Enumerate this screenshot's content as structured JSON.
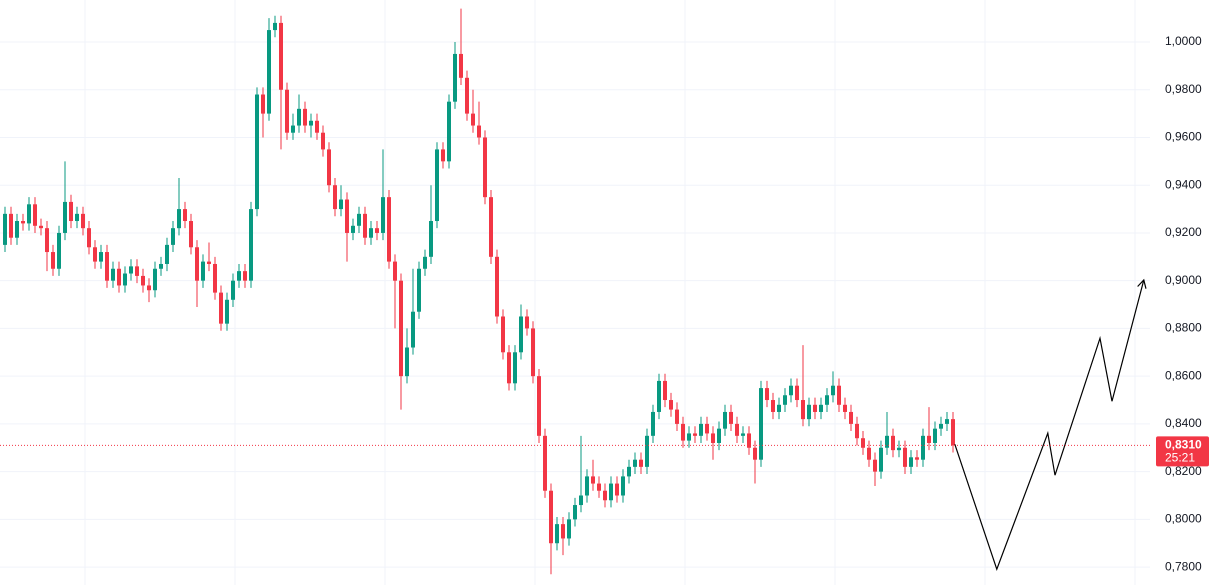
{
  "chart_data": {
    "type": "candlestick",
    "up_color": "#089981",
    "down_color": "#f23645",
    "grid": true,
    "ylim": [
      0.7725,
      1.0176
    ],
    "yticks": [
      {
        "value": 0.78,
        "label": "0,7800"
      },
      {
        "value": 0.8,
        "label": "0,8000"
      },
      {
        "value": 0.82,
        "label": "0,8200"
      },
      {
        "value": 0.84,
        "label": "0,8400"
      },
      {
        "value": 0.86,
        "label": "0,8600"
      },
      {
        "value": 0.88,
        "label": "0,8800"
      },
      {
        "value": 0.9,
        "label": "0,9000"
      },
      {
        "value": 0.92,
        "label": "0,9200"
      },
      {
        "value": 0.94,
        "label": "0,9400"
      },
      {
        "value": 0.96,
        "label": "0,9600"
      },
      {
        "value": 0.98,
        "label": "0,9800"
      },
      {
        "value": 1.0,
        "label": "1,0000"
      }
    ],
    "last_price": {
      "value": 0.831,
      "label": "0,8310"
    },
    "countdown": "25:21",
    "candles": [
      [
        0.915,
        0.931,
        0.912,
        0.928
      ],
      [
        0.928,
        0.931,
        0.915,
        0.918
      ],
      [
        0.918,
        0.928,
        0.915,
        0.925
      ],
      [
        0.925,
        0.928,
        0.921,
        0.924
      ],
      [
        0.924,
        0.935,
        0.921,
        0.932
      ],
      [
        0.932,
        0.935,
        0.92,
        0.923
      ],
      [
        0.923,
        0.926,
        0.919,
        0.922
      ],
      [
        0.922,
        0.925,
        0.904,
        0.912
      ],
      [
        0.912,
        0.915,
        0.902,
        0.905
      ],
      [
        0.905,
        0.923,
        0.902,
        0.92
      ],
      [
        0.92,
        0.95,
        0.917,
        0.933
      ],
      [
        0.933,
        0.936,
        0.922,
        0.925
      ],
      [
        0.925,
        0.931,
        0.922,
        0.928
      ],
      [
        0.928,
        0.931,
        0.919,
        0.922
      ],
      [
        0.922,
        0.925,
        0.911,
        0.914
      ],
      [
        0.914,
        0.917,
        0.905,
        0.908
      ],
      [
        0.908,
        0.915,
        0.905,
        0.912
      ],
      [
        0.912,
        0.915,
        0.897,
        0.9
      ],
      [
        0.9,
        0.908,
        0.897,
        0.905
      ],
      [
        0.905,
        0.908,
        0.895,
        0.898
      ],
      [
        0.898,
        0.906,
        0.895,
        0.903
      ],
      [
        0.903,
        0.909,
        0.9,
        0.906
      ],
      [
        0.906,
        0.909,
        0.899,
        0.902
      ],
      [
        0.902,
        0.905,
        0.895,
        0.898
      ],
      [
        0.898,
        0.901,
        0.891,
        0.896
      ],
      [
        0.896,
        0.908,
        0.893,
        0.905
      ],
      [
        0.905,
        0.91,
        0.902,
        0.907
      ],
      [
        0.907,
        0.918,
        0.904,
        0.915
      ],
      [
        0.915,
        0.925,
        0.912,
        0.922
      ],
      [
        0.922,
        0.943,
        0.919,
        0.93
      ],
      [
        0.93,
        0.933,
        0.922,
        0.925
      ],
      [
        0.925,
        0.928,
        0.911,
        0.914
      ],
      [
        0.914,
        0.917,
        0.889,
        0.9
      ],
      [
        0.9,
        0.911,
        0.897,
        0.908
      ],
      [
        0.908,
        0.916,
        0.904,
        0.907
      ],
      [
        0.907,
        0.91,
        0.892,
        0.895
      ],
      [
        0.895,
        0.898,
        0.879,
        0.882
      ],
      [
        0.882,
        0.895,
        0.879,
        0.892
      ],
      [
        0.892,
        0.903,
        0.889,
        0.9
      ],
      [
        0.9,
        0.907,
        0.897,
        0.904
      ],
      [
        0.904,
        0.907,
        0.897,
        0.9
      ],
      [
        0.9,
        0.933,
        0.897,
        0.93
      ],
      [
        0.93,
        0.981,
        0.927,
        0.978
      ],
      [
        0.978,
        0.981,
        0.96,
        0.97
      ],
      [
        0.97,
        1.01,
        0.967,
        1.005
      ],
      [
        1.005,
        1.011,
        1.002,
        1.008
      ],
      [
        1.008,
        1.011,
        0.955,
        0.98
      ],
      [
        0.98,
        0.983,
        0.959,
        0.962
      ],
      [
        0.962,
        0.97,
        0.959,
        0.965
      ],
      [
        0.965,
        0.978,
        0.962,
        0.972
      ],
      [
        0.972,
        0.975,
        0.962,
        0.965
      ],
      [
        0.965,
        0.97,
        0.96,
        0.967
      ],
      [
        0.967,
        0.97,
        0.959,
        0.962
      ],
      [
        0.962,
        0.965,
        0.952,
        0.955
      ],
      [
        0.955,
        0.958,
        0.937,
        0.94
      ],
      [
        0.94,
        0.943,
        0.927,
        0.93
      ],
      [
        0.93,
        0.94,
        0.927,
        0.934
      ],
      [
        0.934,
        0.937,
        0.908,
        0.92
      ],
      [
        0.92,
        0.926,
        0.917,
        0.923
      ],
      [
        0.923,
        0.931,
        0.92,
        0.928
      ],
      [
        0.928,
        0.931,
        0.915,
        0.918
      ],
      [
        0.918,
        0.925,
        0.915,
        0.922
      ],
      [
        0.922,
        0.925,
        0.917,
        0.92
      ],
      [
        0.92,
        0.955,
        0.917,
        0.935
      ],
      [
        0.935,
        0.938,
        0.905,
        0.908
      ],
      [
        0.908,
        0.911,
        0.88,
        0.9
      ],
      [
        0.9,
        0.903,
        0.846,
        0.86
      ],
      [
        0.86,
        0.88,
        0.857,
        0.872
      ],
      [
        0.872,
        0.905,
        0.869,
        0.887
      ],
      [
        0.887,
        0.908,
        0.884,
        0.905
      ],
      [
        0.905,
        0.913,
        0.902,
        0.91
      ],
      [
        0.91,
        0.94,
        0.907,
        0.925
      ],
      [
        0.925,
        0.958,
        0.922,
        0.955
      ],
      [
        0.955,
        0.958,
        0.947,
        0.95
      ],
      [
        0.95,
        0.978,
        0.947,
        0.975
      ],
      [
        0.975,
        1.0,
        0.972,
        0.995
      ],
      [
        0.995,
        1.014,
        0.982,
        0.985
      ],
      [
        0.985,
        0.988,
        0.967,
        0.97
      ],
      [
        0.97,
        0.98,
        0.962,
        0.965
      ],
      [
        0.965,
        0.975,
        0.957,
        0.96
      ],
      [
        0.96,
        0.963,
        0.932,
        0.935
      ],
      [
        0.935,
        0.938,
        0.907,
        0.91
      ],
      [
        0.91,
        0.913,
        0.882,
        0.885
      ],
      [
        0.885,
        0.888,
        0.867,
        0.87
      ],
      [
        0.87,
        0.873,
        0.854,
        0.857
      ],
      [
        0.857,
        0.873,
        0.854,
        0.87
      ],
      [
        0.87,
        0.89,
        0.867,
        0.885
      ],
      [
        0.885,
        0.888,
        0.877,
        0.88
      ],
      [
        0.88,
        0.883,
        0.857,
        0.86
      ],
      [
        0.86,
        0.863,
        0.832,
        0.835
      ],
      [
        0.835,
        0.838,
        0.809,
        0.812
      ],
      [
        0.812,
        0.815,
        0.777,
        0.79
      ],
      [
        0.79,
        0.801,
        0.787,
        0.798
      ],
      [
        0.798,
        0.801,
        0.785,
        0.792
      ],
      [
        0.792,
        0.803,
        0.789,
        0.8
      ],
      [
        0.8,
        0.809,
        0.797,
        0.806
      ],
      [
        0.806,
        0.835,
        0.803,
        0.81
      ],
      [
        0.81,
        0.821,
        0.807,
        0.818
      ],
      [
        0.818,
        0.825,
        0.812,
        0.815
      ],
      [
        0.815,
        0.818,
        0.809,
        0.812
      ],
      [
        0.812,
        0.815,
        0.805,
        0.808
      ],
      [
        0.808,
        0.818,
        0.805,
        0.815
      ],
      [
        0.815,
        0.818,
        0.807,
        0.81
      ],
      [
        0.81,
        0.821,
        0.807,
        0.818
      ],
      [
        0.818,
        0.825,
        0.815,
        0.822
      ],
      [
        0.822,
        0.828,
        0.819,
        0.825
      ],
      [
        0.825,
        0.828,
        0.819,
        0.822
      ],
      [
        0.822,
        0.838,
        0.819,
        0.835
      ],
      [
        0.835,
        0.848,
        0.832,
        0.845
      ],
      [
        0.845,
        0.861,
        0.842,
        0.858
      ],
      [
        0.858,
        0.861,
        0.847,
        0.85
      ],
      [
        0.85,
        0.853,
        0.843,
        0.846
      ],
      [
        0.846,
        0.849,
        0.837,
        0.84
      ],
      [
        0.84,
        0.843,
        0.83,
        0.833
      ],
      [
        0.833,
        0.839,
        0.83,
        0.836
      ],
      [
        0.836,
        0.839,
        0.832,
        0.835
      ],
      [
        0.835,
        0.843,
        0.832,
        0.84
      ],
      [
        0.84,
        0.843,
        0.833,
        0.836
      ],
      [
        0.836,
        0.839,
        0.825,
        0.832
      ],
      [
        0.832,
        0.841,
        0.829,
        0.838
      ],
      [
        0.838,
        0.848,
        0.835,
        0.845
      ],
      [
        0.845,
        0.848,
        0.837,
        0.84
      ],
      [
        0.84,
        0.843,
        0.832,
        0.835
      ],
      [
        0.835,
        0.839,
        0.832,
        0.836
      ],
      [
        0.836,
        0.839,
        0.827,
        0.83
      ],
      [
        0.83,
        0.833,
        0.815,
        0.825
      ],
      [
        0.825,
        0.858,
        0.822,
        0.855
      ],
      [
        0.855,
        0.858,
        0.847,
        0.85
      ],
      [
        0.85,
        0.853,
        0.842,
        0.845
      ],
      [
        0.845,
        0.851,
        0.842,
        0.848
      ],
      [
        0.848,
        0.855,
        0.845,
        0.852
      ],
      [
        0.852,
        0.859,
        0.849,
        0.856
      ],
      [
        0.856,
        0.859,
        0.847,
        0.85
      ],
      [
        0.85,
        0.873,
        0.839,
        0.842
      ],
      [
        0.842,
        0.851,
        0.839,
        0.848
      ],
      [
        0.848,
        0.851,
        0.842,
        0.845
      ],
      [
        0.845,
        0.851,
        0.842,
        0.848
      ],
      [
        0.848,
        0.855,
        0.845,
        0.852
      ],
      [
        0.852,
        0.862,
        0.849,
        0.856
      ],
      [
        0.856,
        0.859,
        0.845,
        0.848
      ],
      [
        0.848,
        0.851,
        0.842,
        0.845
      ],
      [
        0.845,
        0.848,
        0.837,
        0.84
      ],
      [
        0.84,
        0.843,
        0.831,
        0.834
      ],
      [
        0.834,
        0.837,
        0.827,
        0.83
      ],
      [
        0.83,
        0.833,
        0.822,
        0.825
      ],
      [
        0.825,
        0.828,
        0.814,
        0.82
      ],
      [
        0.82,
        0.833,
        0.817,
        0.83
      ],
      [
        0.83,
        0.845,
        0.827,
        0.835
      ],
      [
        0.835,
        0.838,
        0.826,
        0.829
      ],
      [
        0.829,
        0.833,
        0.826,
        0.83
      ],
      [
        0.83,
        0.833,
        0.819,
        0.822
      ],
      [
        0.822,
        0.829,
        0.819,
        0.826
      ],
      [
        0.826,
        0.829,
        0.822,
        0.825
      ],
      [
        0.825,
        0.838,
        0.822,
        0.835
      ],
      [
        0.835,
        0.847,
        0.829,
        0.832
      ],
      [
        0.832,
        0.841,
        0.829,
        0.838
      ],
      [
        0.838,
        0.843,
        0.835,
        0.84
      ],
      [
        0.84,
        0.845,
        0.837,
        0.842
      ],
      [
        0.842,
        0.845,
        0.828,
        0.831
      ]
    ],
    "projection": {
      "color": "#000000",
      "x": [
        158.3,
        165.3,
        173.8,
        175,
        182.5,
        184.5,
        189.8
      ],
      "values": [
        0.8315,
        0.7791,
        0.8361,
        0.8185,
        0.8759,
        0.8495,
        0.9003
      ]
    }
  }
}
